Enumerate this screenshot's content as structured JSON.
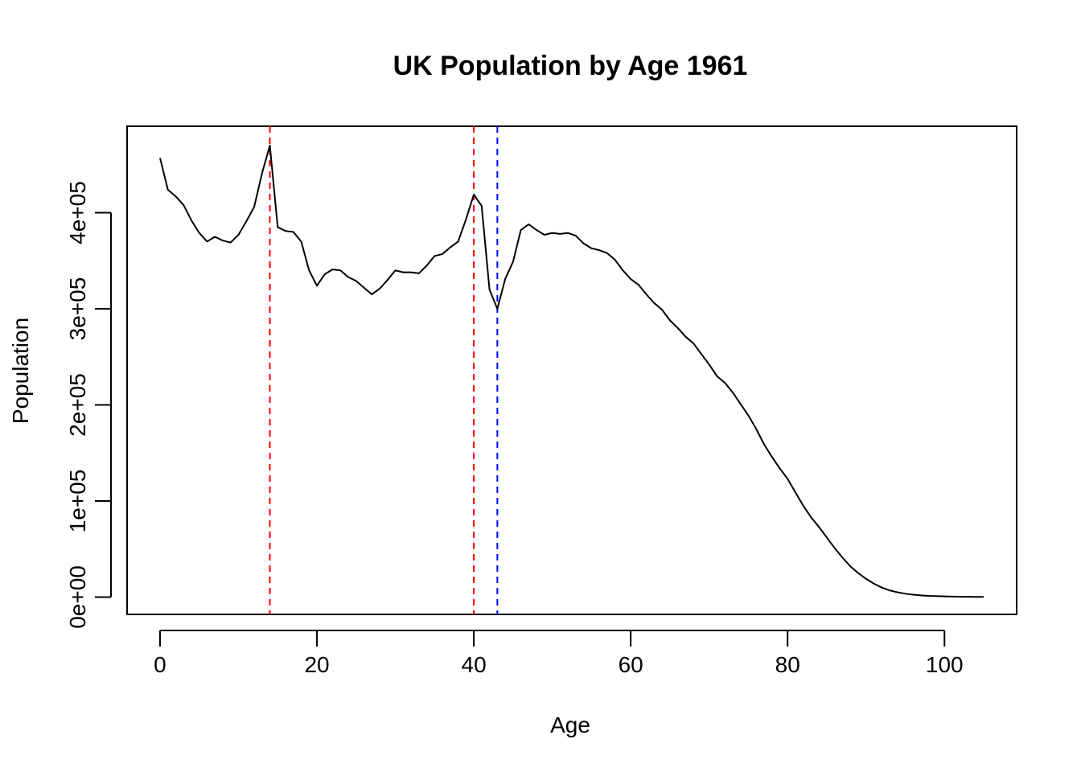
{
  "chart_data": {
    "type": "line",
    "title": "UK Population by Age 1961",
    "xlabel": "Age",
    "ylabel": "Population",
    "xlim": [
      -4.2,
      109.2
    ],
    "ylim": [
      -18000,
      490000
    ],
    "x_ticks": [
      0,
      20,
      40,
      60,
      80,
      100
    ],
    "x_tick_labels": [
      "0",
      "20",
      "40",
      "60",
      "80",
      "100"
    ],
    "y_ticks": [
      0,
      100000,
      200000,
      300000,
      400000
    ],
    "y_tick_labels": [
      "0e+00",
      "1e+05",
      "2e+05",
      "3e+05",
      "4e+05"
    ],
    "grid": false,
    "legend": "none",
    "line_color": "#000000",
    "series": [
      {
        "x": [
          0,
          1,
          2,
          3,
          4,
          5,
          6,
          7,
          8,
          9,
          10,
          11,
          12,
          13,
          14,
          15,
          16,
          17,
          18,
          19,
          20,
          21,
          22,
          23,
          24,
          25,
          26,
          27,
          28,
          29,
          30,
          31,
          32,
          33,
          34,
          35,
          36,
          37,
          38,
          39,
          40,
          41,
          42,
          43,
          44,
          45,
          46,
          47,
          48,
          49,
          50,
          51,
          52,
          53,
          54,
          55,
          56,
          57,
          58,
          59,
          60,
          61,
          62,
          63,
          64,
          65,
          66,
          67,
          68,
          69,
          70,
          71,
          72,
          73,
          74,
          75,
          76,
          77,
          78,
          79,
          80,
          81,
          82,
          83,
          84,
          85,
          86,
          87,
          88,
          89,
          90,
          91,
          92,
          93,
          94,
          95,
          96,
          97,
          98,
          99,
          100,
          101,
          102,
          103,
          104,
          105
        ],
        "values": [
          457000,
          424000,
          417000,
          408000,
          392000,
          379000,
          370000,
          375000,
          371000,
          369000,
          377000,
          391000,
          406000,
          441000,
          470000,
          385000,
          381000,
          380000,
          370000,
          340000,
          324000,
          336000,
          341000,
          340000,
          333000,
          329000,
          322000,
          315000,
          321000,
          330000,
          340000,
          338000,
          338000,
          337000,
          345000,
          355000,
          357000,
          364000,
          370000,
          393000,
          419000,
          407000,
          320000,
          300000,
          331000,
          349000,
          382000,
          388000,
          382000,
          377000,
          379000,
          378000,
          379000,
          376000,
          368000,
          363000,
          361000,
          358000,
          351000,
          340000,
          331000,
          325000,
          315000,
          306000,
          299000,
          288000,
          280000,
          271000,
          264000,
          253000,
          242000,
          230000,
          223000,
          213000,
          201000,
          189000,
          175000,
          159000,
          146000,
          134000,
          123000,
          109000,
          95000,
          83000,
          73000,
          62000,
          51000,
          41000,
          32000,
          25000,
          19000,
          14000,
          10000,
          7000,
          5000,
          3500,
          2500,
          1800,
          1300,
          1000,
          700,
          500,
          400,
          300,
          250,
          200
        ]
      }
    ],
    "vlines": [
      {
        "x": 14,
        "color": "#ff0000",
        "style": "dashed"
      },
      {
        "x": 40,
        "color": "#ff0000",
        "style": "dashed"
      },
      {
        "x": 43,
        "color": "#0000ff",
        "style": "dashed"
      }
    ]
  }
}
